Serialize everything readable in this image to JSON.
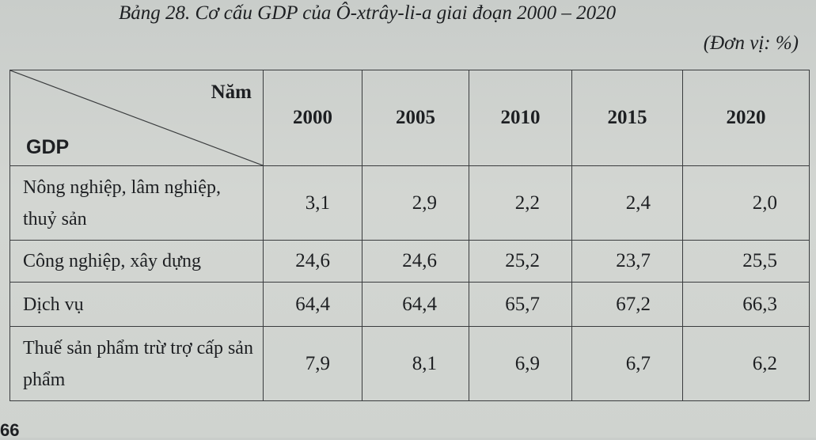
{
  "caption": "Bảng 28. Cơ cấu GDP của Ô-xtrây-li-a giai đoạn 2000 – 2020",
  "unit": "(Đơn vị: %)",
  "page_number": "66",
  "table": {
    "corner_top": "Năm",
    "corner_bottom": "GDP",
    "years": [
      "2000",
      "2005",
      "2010",
      "2015",
      "2020"
    ],
    "rows": [
      {
        "label": "Nông nghiệp, lâm nghiệp, thuỷ sản",
        "values": [
          "3,1",
          "2,9",
          "2,2",
          "2,4",
          "2,0"
        ]
      },
      {
        "label": "Công nghiệp, xây dựng",
        "values": [
          "24,6",
          "24,6",
          "25,2",
          "23,7",
          "25,5"
        ]
      },
      {
        "label": "Dịch vụ",
        "values": [
          "64,4",
          "64,4",
          "65,7",
          "67,2",
          "66,3"
        ]
      },
      {
        "label": "Thuế sản phẩm trừ trợ cấp sản phẩm",
        "values": [
          "7,9",
          "8,1",
          "6,9",
          "6,7",
          "6,2"
        ]
      }
    ]
  }
}
